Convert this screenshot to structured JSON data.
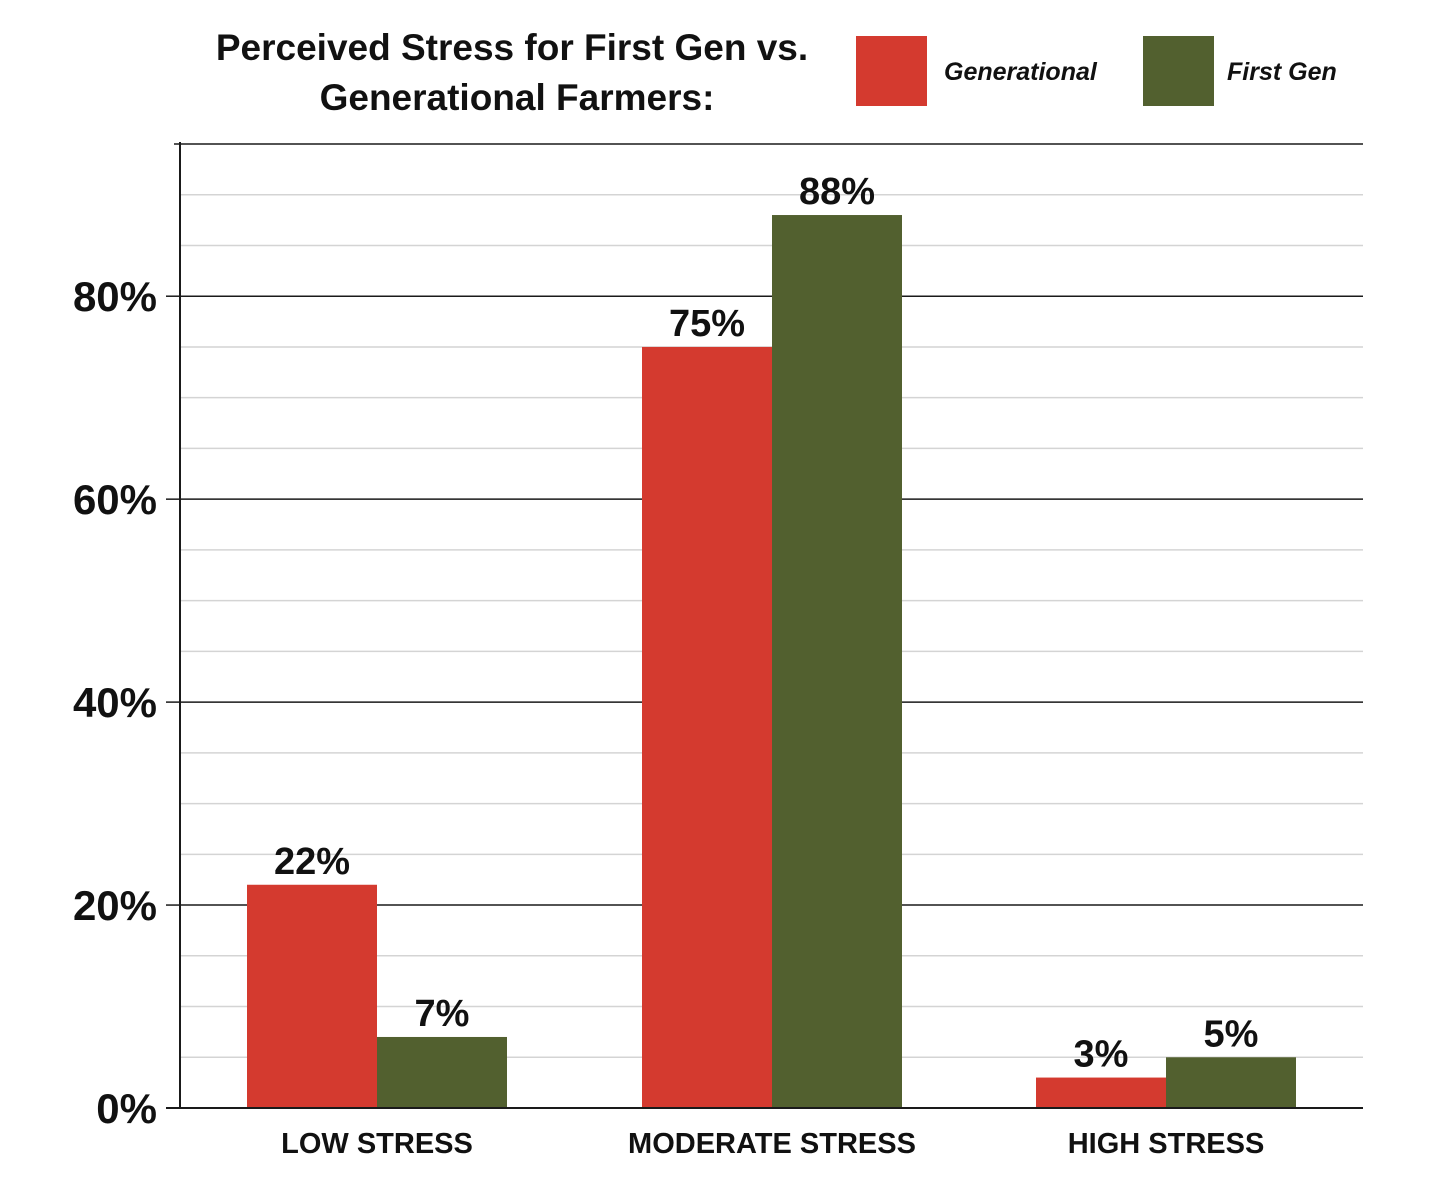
{
  "chart_data": {
    "type": "bar",
    "title": [
      "Perceived Stress for First Gen vs.",
      "Generational Farmers:"
    ],
    "categories": [
      "LOW STRESS",
      "MODERATE STRESS",
      "HIGH STRESS"
    ],
    "series": [
      {
        "name": "Generational",
        "color": "#d43a2f",
        "values": [
          22,
          75,
          3
        ],
        "labels": [
          "22%",
          "75%",
          "3%"
        ]
      },
      {
        "name": "First Gen",
        "color": "#52602f",
        "values": [
          7,
          88,
          5
        ],
        "labels": [
          "7%",
          "88%",
          "5%"
        ]
      }
    ],
    "ylim": [
      0,
      95
    ],
    "yticks": [
      0,
      20,
      40,
      60,
      80
    ],
    "ytick_labels": [
      "0%",
      "20%",
      "40%",
      "60%",
      "80%"
    ],
    "minor_gridlines_every": 5,
    "grid": true,
    "legend": "top-right",
    "xlabel": "",
    "ylabel": ""
  }
}
